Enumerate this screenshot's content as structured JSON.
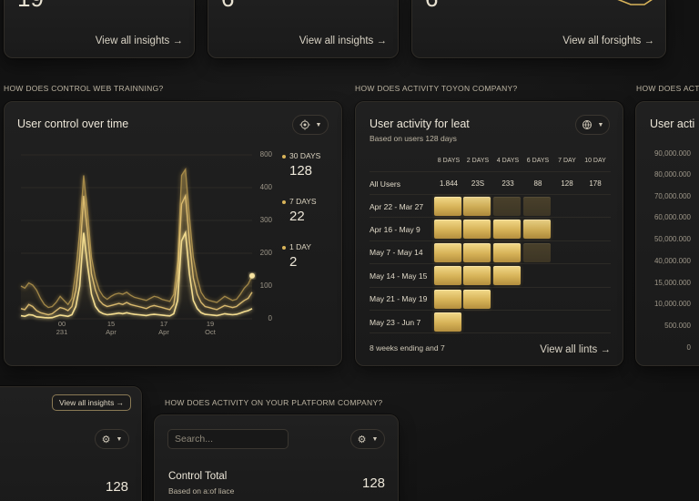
{
  "top_cards": [
    {
      "value": "19",
      "link": "View all insights →"
    },
    {
      "value": "6",
      "link": "View all insights →"
    },
    {
      "value": "6",
      "link": "View all forsights →"
    }
  ],
  "sections": {
    "left": "HOW DOES CONTROL WEB TRAINNING?",
    "middle": "HOW DOES ACTIVITY TOYON COMPANY?",
    "right": "HOW DOES ACTI",
    "bottom": "HOW DOES ACTIVITY ON YOUR PLATFORM COMPANY?"
  },
  "line_card": {
    "title": "User control over time",
    "y_ticks": [
      "800",
      "400",
      "300",
      "200",
      "100",
      "0"
    ],
    "x_ticks": [
      [
        "00",
        "231"
      ],
      [
        "15",
        "Apr"
      ],
      [
        "17",
        "Apr"
      ],
      [
        "19",
        "Oct"
      ]
    ],
    "legend": [
      {
        "label": "30 DAYS",
        "value": "128"
      },
      {
        "label": "7 DAYS",
        "value": "22"
      },
      {
        "label": "1 DAY",
        "value": "2"
      }
    ],
    "colors": {
      "accent": "#d9b45a",
      "bright": "#f3dc8f"
    }
  },
  "chart_data": {
    "type": "line",
    "title": "User control over time",
    "ylim": [
      0,
      800
    ],
    "x": [
      0,
      1,
      2,
      3,
      4,
      5,
      6,
      7,
      8,
      9,
      10,
      11,
      12,
      13,
      14,
      15,
      16,
      17,
      18,
      19,
      20,
      21,
      22,
      23,
      24,
      25,
      26,
      27,
      28,
      29,
      30,
      31,
      32,
      33,
      34,
      35,
      36,
      37,
      38,
      39,
      40,
      41,
      42,
      43,
      44,
      45,
      46,
      47,
      48,
      49,
      50,
      51,
      52,
      53,
      54,
      55,
      56,
      57,
      58,
      59
    ],
    "series": [
      {
        "values": [
          160,
          150,
          175,
          165,
          140,
          100,
          70,
          55,
          60,
          80,
          110,
          90,
          70,
          100,
          230,
          430,
          700,
          520,
          300,
          200,
          140,
          110,
          95,
          110,
          120,
          125,
          120,
          130,
          115,
          105,
          100,
          95,
          90,
          100,
          110,
          105,
          95,
          90,
          85,
          120,
          280,
          700,
          730,
          500,
          300,
          200,
          130,
          100,
          90,
          85,
          80,
          95,
          110,
          100,
          90,
          95,
          120,
          150,
          170,
          210
        ]
      },
      {
        "values": [
          50,
          45,
          70,
          60,
          40,
          30,
          25,
          20,
          25,
          40,
          55,
          50,
          40,
          60,
          140,
          300,
          600,
          420,
          220,
          140,
          90,
          70,
          60,
          65,
          70,
          75,
          70,
          80,
          70,
          65,
          60,
          55,
          50,
          60,
          65,
          60,
          55,
          50,
          45,
          70,
          200,
          560,
          600,
          380,
          200,
          120,
          80,
          60,
          55,
          50,
          45,
          55,
          65,
          60,
          55,
          60,
          75,
          90,
          100,
          130
        ]
      },
      {
        "values": [
          15,
          12,
          20,
          18,
          10,
          8,
          6,
          5,
          6,
          12,
          18,
          15,
          12,
          20,
          60,
          160,
          420,
          260,
          120,
          60,
          35,
          25,
          20,
          22,
          25,
          28,
          25,
          30,
          25,
          22,
          20,
          18,
          16,
          20,
          22,
          20,
          18,
          16,
          14,
          25,
          90,
          380,
          420,
          220,
          90,
          50,
          30,
          22,
          20,
          18,
          16,
          20,
          25,
          22,
          20,
          22,
          28,
          35,
          40,
          50
        ]
      }
    ]
  },
  "cohort": {
    "title": "User activity for leat",
    "subtitle": "Based on users 128 days",
    "headers": [
      "8 DAYS",
      "2 DAYS",
      "4 DAYS",
      "6 DAYS",
      "7 DAY",
      "10 DAY"
    ],
    "all_users": {
      "label": "All Users",
      "values": [
        "1.844",
        "23S",
        "233",
        "88",
        "128",
        "178"
      ]
    },
    "rows": [
      {
        "label": "Apr 22 - Mar 27",
        "cells": [
          1,
          0.95,
          0.45,
          0.45
        ]
      },
      {
        "label": "Apr 16 - May 9",
        "cells": [
          1,
          1,
          1,
          0.95
        ]
      },
      {
        "label": "May 7 - May 14",
        "cells": [
          1,
          1,
          1,
          0.4
        ]
      },
      {
        "label": "May 14 - May 15",
        "cells": [
          1,
          1,
          1
        ]
      },
      {
        "label": "May 21 - May 19",
        "cells": [
          1,
          1
        ]
      },
      {
        "label": "May 23 - Jun 7",
        "cells": [
          1
        ]
      }
    ],
    "footer": "8 weeks ending and 7",
    "link": "View all lints →"
  },
  "right_card": {
    "title": "User acti",
    "values": [
      "90,000.000",
      "80,000.000",
      "70,000.000",
      "60,000.000",
      "50,000.000",
      "40,000.000",
      "15,000.000",
      "10,000.000",
      "500.000",
      "0"
    ]
  },
  "bottom_left": {
    "button": "View all insights →",
    "value": "128"
  },
  "bottom_mid": {
    "search_placeholder": "Search...",
    "title": "Control Total",
    "subtitle": "Based on a:of liace",
    "value": "128"
  }
}
